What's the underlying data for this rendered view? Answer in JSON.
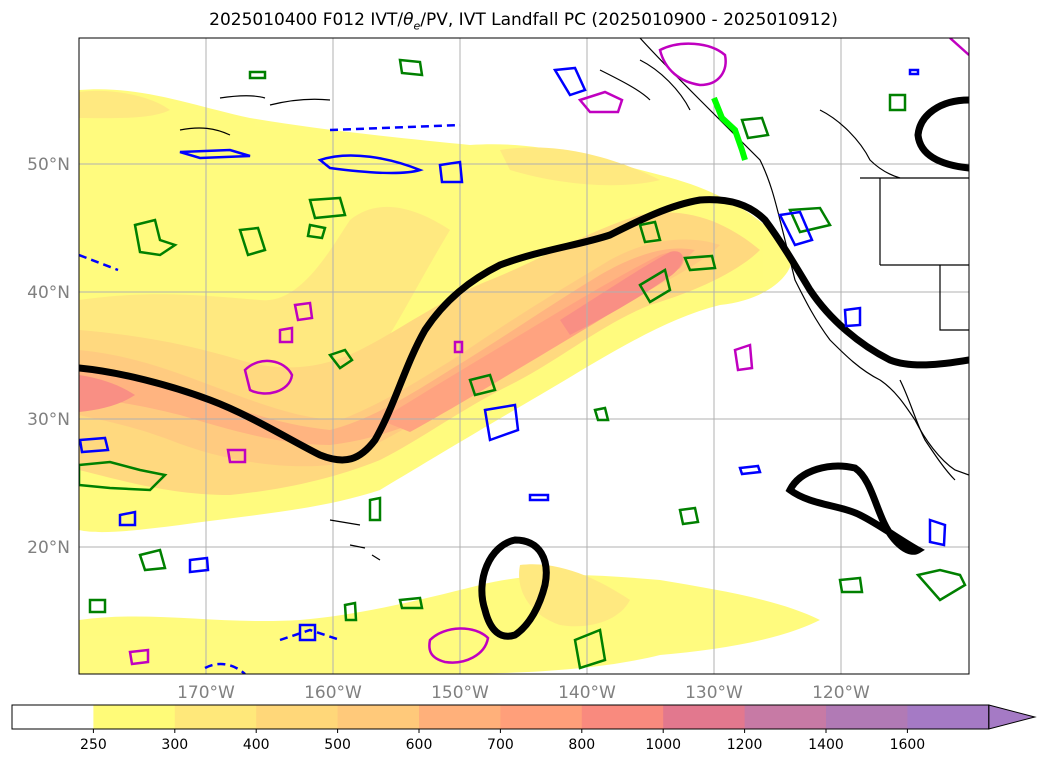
{
  "title": "2025010400 F012 IVT/θe/PV, IVT Landfall PC (2025010900 - 2025010912)",
  "title_parts": {
    "pre": "2025010400 F012 IVT/",
    "theta": "θ",
    "sub": "e",
    "post": "/PV, IVT Landfall PC (2025010900 - 2025010912)"
  },
  "lat_labels": [
    "50°N",
    "40°N",
    "30°N",
    "20°N"
  ],
  "lon_labels": [
    "170°W",
    "160°W",
    "150°W",
    "140°W",
    "130°W",
    "120°W"
  ],
  "colorbar": {
    "ticks": [
      "250",
      "300",
      "400",
      "500",
      "600",
      "700",
      "800",
      "1000",
      "1200",
      "1400",
      "1600"
    ],
    "colors": [
      "#ffffff",
      "#fffb78",
      "#ffe87a",
      "#ffd779",
      "#ffc97a",
      "#ffb07a",
      "#ff9f7a",
      "#f98a7e",
      "#e2788e",
      "#c77aa5",
      "#b17ab5",
      "#a57ac5"
    ],
    "extend": "max"
  },
  "contour_colors": {
    "theta_e": "#000000",
    "pv_positive": "#008000",
    "pv_negative": "#0000ff",
    "ivt_magenta": "#c000c0",
    "landfall": "#00ff00"
  }
}
